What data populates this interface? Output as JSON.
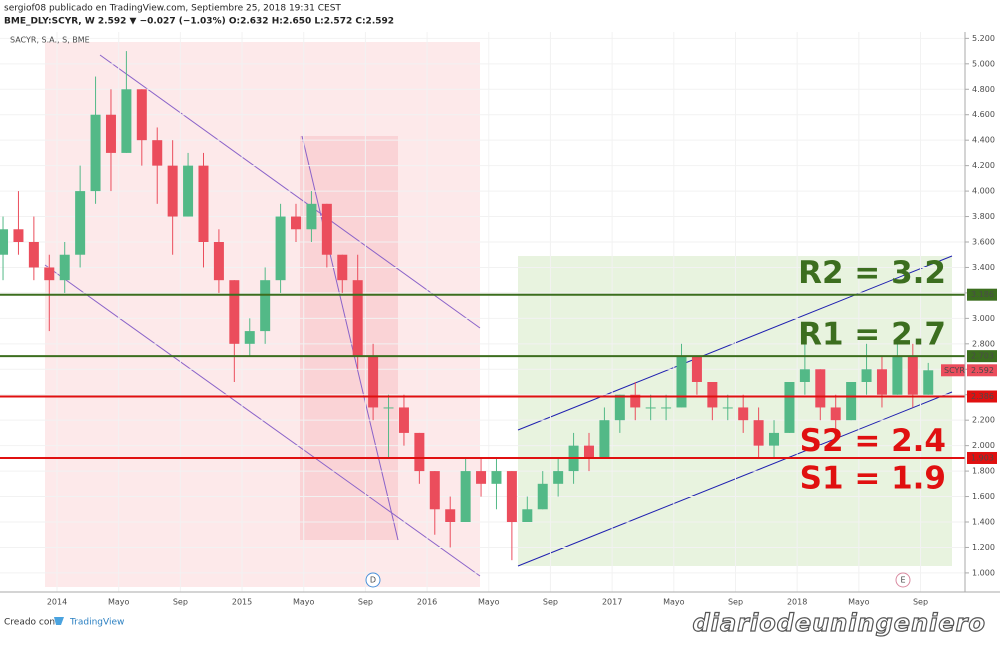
{
  "header": {
    "line1": "sergiof08 publicado en TradingView.com, Septiembre 25, 2018 19:31 CEST",
    "line2": "BME_DLY:SCYR, W  2.592 ▼ −0.027 (−1.03%) O:2.632 H:2.650 L:2.572 C:2.592"
  },
  "footer": {
    "created": "Creado con",
    "brand": "TradingView",
    "watermark": "diariodeuningeniero"
  },
  "chart_data": {
    "type": "candlestick",
    "title": "SACYR, S.A., S, BME",
    "up_color": "#53b987",
    "down_color": "#eb4d5c",
    "x": [
      "2013-09",
      "2013-10",
      "2013-11",
      "2013-12",
      "2014-01",
      "2014-02",
      "2014-03",
      "2014-04",
      "2014-05",
      "2014-06",
      "2014-07",
      "2014-08",
      "2014-09",
      "2014-10",
      "2014-11",
      "2014-12",
      "2015-01",
      "2015-02",
      "2015-03",
      "2015-04",
      "2015-05",
      "2015-06",
      "2015-07",
      "2015-08",
      "2015-09",
      "2015-10",
      "2015-11",
      "2015-12",
      "2016-01",
      "2016-02",
      "2016-03",
      "2016-04",
      "2016-05",
      "2016-06",
      "2016-07",
      "2016-08",
      "2016-09",
      "2016-10",
      "2016-11",
      "2016-12",
      "2017-01",
      "2017-02",
      "2017-03",
      "2017-04",
      "2017-05",
      "2017-06",
      "2017-07",
      "2017-08",
      "2017-09",
      "2017-10",
      "2017-11",
      "2017-12",
      "2018-01",
      "2018-02",
      "2018-03",
      "2018-04",
      "2018-05",
      "2018-06",
      "2018-07",
      "2018-08",
      "2018-09"
    ],
    "open": [
      3.5,
      3.7,
      3.6,
      3.4,
      3.3,
      3.5,
      4.0,
      4.6,
      4.3,
      4.8,
      4.4,
      4.2,
      3.8,
      4.2,
      3.6,
      3.3,
      2.8,
      2.9,
      3.3,
      3.8,
      3.7,
      3.9,
      3.5,
      3.3,
      2.7,
      2.3,
      2.3,
      2.1,
      1.8,
      1.5,
      1.4,
      1.8,
      1.7,
      1.8,
      1.4,
      1.5,
      1.7,
      1.8,
      2.0,
      1.9,
      2.2,
      2.4,
      2.3,
      2.3,
      2.3,
      2.7,
      2.5,
      2.3,
      2.3,
      2.2,
      2.0,
      2.1,
      2.5,
      2.6,
      2.3,
      2.2,
      2.5,
      2.6,
      2.4,
      2.7,
      2.4
    ],
    "high": [
      3.8,
      4.0,
      3.8,
      3.5,
      3.6,
      4.2,
      4.9,
      4.8,
      5.1,
      4.8,
      4.5,
      4.4,
      4.3,
      4.3,
      3.7,
      3.3,
      3.0,
      3.4,
      3.9,
      3.9,
      4.0,
      3.9,
      3.5,
      3.5,
      2.8,
      2.4,
      2.4,
      2.1,
      1.8,
      1.6,
      1.9,
      1.9,
      1.9,
      1.8,
      1.6,
      1.8,
      1.9,
      2.1,
      2.1,
      2.3,
      2.4,
      2.5,
      2.4,
      2.4,
      2.8,
      2.7,
      2.5,
      2.4,
      2.4,
      2.3,
      2.2,
      2.5,
      2.8,
      2.6,
      2.4,
      2.5,
      2.8,
      2.7,
      2.8,
      2.8,
      2.65
    ],
    "low": [
      3.3,
      3.5,
      3.3,
      2.9,
      3.2,
      3.4,
      3.9,
      4.0,
      4.3,
      4.2,
      3.9,
      3.5,
      3.8,
      3.4,
      3.2,
      2.5,
      2.7,
      2.8,
      3.2,
      3.6,
      3.6,
      3.4,
      3.2,
      2.6,
      2.2,
      1.9,
      2.0,
      1.7,
      1.3,
      1.2,
      1.4,
      1.6,
      1.5,
      1.1,
      1.4,
      1.5,
      1.6,
      1.7,
      1.8,
      1.9,
      2.1,
      2.2,
      2.2,
      2.2,
      2.3,
      2.4,
      2.2,
      2.2,
      2.1,
      1.9,
      1.9,
      2.1,
      2.4,
      2.2,
      2.1,
      2.2,
      2.4,
      2.3,
      2.4,
      2.3,
      2.4
    ],
    "close": [
      3.7,
      3.6,
      3.4,
      3.3,
      3.5,
      4.0,
      4.6,
      4.3,
      4.8,
      4.4,
      4.2,
      3.8,
      4.2,
      3.6,
      3.3,
      2.8,
      2.9,
      3.3,
      3.8,
      3.7,
      3.9,
      3.5,
      3.3,
      2.7,
      2.3,
      2.3,
      2.1,
      1.8,
      1.5,
      1.4,
      1.8,
      1.7,
      1.8,
      1.4,
      1.5,
      1.7,
      1.8,
      2.0,
      1.9,
      2.2,
      2.4,
      2.3,
      2.3,
      2.3,
      2.7,
      2.5,
      2.3,
      2.3,
      2.2,
      2.0,
      2.1,
      2.5,
      2.6,
      2.3,
      2.2,
      2.5,
      2.6,
      2.4,
      2.7,
      2.4,
      2.592
    ],
    "ylim": [
      0.85,
      5.25
    ],
    "yticks": [
      {
        "value": 1.0,
        "label": "1.000"
      },
      {
        "value": 1.2,
        "label": "1.200"
      },
      {
        "value": 1.4,
        "label": "1.400"
      },
      {
        "value": 1.6,
        "label": "1.600"
      },
      {
        "value": 1.8,
        "label": "1.800"
      },
      {
        "value": 2.0,
        "label": "2.000"
      },
      {
        "value": 2.2,
        "label": "2.200"
      },
      {
        "value": 2.4,
        "label": "2.400"
      },
      {
        "value": 2.6,
        "label": "2.600"
      },
      {
        "value": 2.8,
        "label": "2.800"
      },
      {
        "value": 3.0,
        "label": "3.000"
      },
      {
        "value": 3.2,
        "label": "3.200"
      },
      {
        "value": 3.4,
        "label": "3.400"
      },
      {
        "value": 3.6,
        "label": "3.600"
      },
      {
        "value": 3.8,
        "label": "3.800"
      },
      {
        "value": 4.0,
        "label": "4.000"
      },
      {
        "value": 4.2,
        "label": "4.200"
      },
      {
        "value": 4.4,
        "label": "4.400"
      },
      {
        "value": 4.6,
        "label": "4.600"
      },
      {
        "value": 4.8,
        "label": "4.800"
      },
      {
        "value": 5.0,
        "label": "5.000"
      },
      {
        "value": 5.2,
        "label": "5.200"
      }
    ],
    "xticks": [
      {
        "value": "2014-01",
        "label": "2014"
      },
      {
        "value": "2014-05",
        "label": "Mayo"
      },
      {
        "value": "2014-09",
        "label": "Sep"
      },
      {
        "value": "2015-01",
        "label": "2015"
      },
      {
        "value": "2015-05",
        "label": "Mayo"
      },
      {
        "value": "2015-09",
        "label": "Sep"
      },
      {
        "value": "2016-01",
        "label": "2016"
      },
      {
        "value": "2016-05",
        "label": "Mayo"
      },
      {
        "value": "2016-09",
        "label": "Sep"
      },
      {
        "value": "2017-01",
        "label": "2017"
      },
      {
        "value": "2017-05",
        "label": "Mayo"
      },
      {
        "value": "2017-09",
        "label": "Sep"
      },
      {
        "value": "2018-01",
        "label": "2018"
      },
      {
        "value": "2018-05",
        "label": "Mayo"
      },
      {
        "value": "2018-09",
        "label": "Sep"
      }
    ],
    "levels": [
      {
        "name": "R2 = 3.2",
        "value": 3.186,
        "color": "#3c6e1f"
      },
      {
        "name": "R1 = 2.7",
        "value": 2.703,
        "color": "#3c6e1f"
      },
      {
        "name": "S2 = 2.4",
        "value": 2.386,
        "color": "#e01010"
      },
      {
        "name": "S1 = 1.9",
        "value": 1.903,
        "color": "#e01010"
      }
    ],
    "last": {
      "symbol": "SCYR",
      "value": 2.592,
      "color": "#eb4d5c"
    },
    "markers": [
      "D",
      "E"
    ]
  }
}
